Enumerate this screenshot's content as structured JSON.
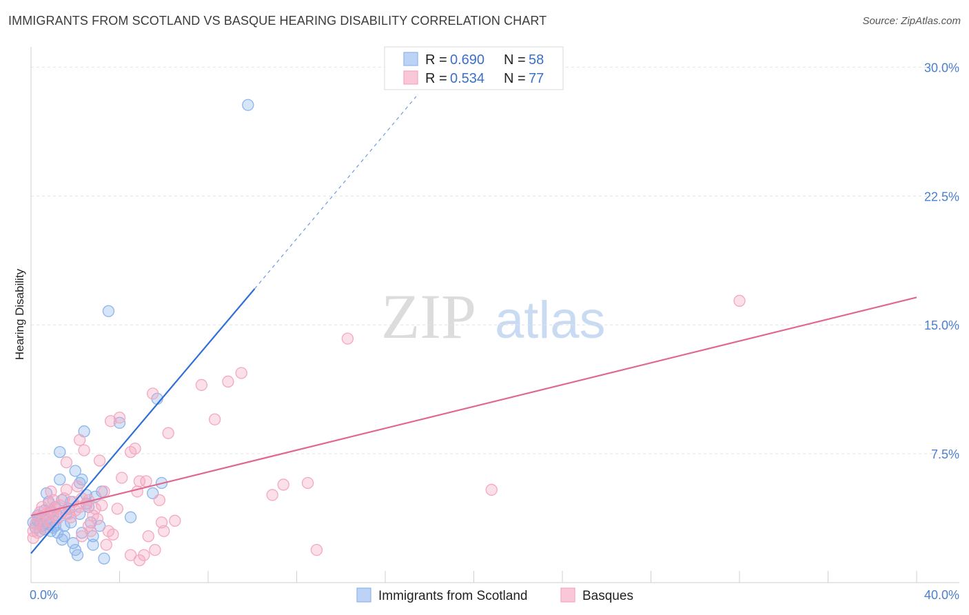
{
  "title": "IMMIGRANTS FROM SCOTLAND VS BASQUE HEARING DISABILITY CORRELATION CHART",
  "source": "Source: ZipAtlas.com",
  "watermark": {
    "zip": "ZIP",
    "atlas": "atlas"
  },
  "legend": {
    "rows": [
      {
        "r_label": "R =",
        "r_value": "0.690",
        "n_label": "N =",
        "n_value": "58"
      },
      {
        "r_label": "R =",
        "r_value": "0.534",
        "n_label": "N =",
        "n_value": "77"
      }
    ]
  },
  "bottom_legend": [
    "Immigrants from Scotland",
    "Basques"
  ],
  "chart_data": {
    "type": "scatter",
    "ylabel": "Hearing Disability",
    "xlabel": "",
    "xlim": [
      0,
      40
    ],
    "ylim": [
      0,
      30.9
    ],
    "x_tick_labels": [
      "0.0%",
      "40.0%"
    ],
    "y_ticks": [
      7.5,
      15.0,
      22.5,
      30.0
    ],
    "y_tick_labels": [
      "7.5%",
      "15.0%",
      "22.5%",
      "30.0%"
    ],
    "grid": "horizontal dashed",
    "legend_position": "top-center",
    "series": [
      {
        "name": "Immigrants from Scotland",
        "color": "#8cb4ec",
        "line_color": "#2f6fd6",
        "r": 0.69,
        "n": 58,
        "trend": {
          "x0": 0,
          "y0": 1.7,
          "x1": 10.1,
          "y1": 17.1,
          "dashed_to_x": 17.4,
          "dashed_to_y": 28.3
        },
        "points": [
          [
            0.1,
            3.5
          ],
          [
            0.2,
            3.2
          ],
          [
            0.3,
            3.6
          ],
          [
            0.3,
            3.9
          ],
          [
            0.4,
            3.4
          ],
          [
            0.5,
            3.8
          ],
          [
            0.5,
            3.3
          ],
          [
            0.6,
            4.2
          ],
          [
            0.6,
            3.1
          ],
          [
            0.7,
            3.7
          ],
          [
            0.7,
            5.2
          ],
          [
            0.8,
            3.4
          ],
          [
            0.8,
            4.7
          ],
          [
            0.9,
            3.0
          ],
          [
            0.9,
            4.1
          ],
          [
            1.0,
            3.6
          ],
          [
            1.0,
            3.2
          ],
          [
            1.1,
            4.4
          ],
          [
            1.2,
            3.9
          ],
          [
            1.2,
            2.9
          ],
          [
            1.3,
            6.0
          ],
          [
            1.3,
            7.6
          ],
          [
            1.4,
            2.5
          ],
          [
            1.4,
            4.8
          ],
          [
            1.5,
            2.7
          ],
          [
            1.5,
            3.3
          ],
          [
            1.6,
            4.0
          ],
          [
            1.7,
            4.3
          ],
          [
            1.8,
            3.5
          ],
          [
            1.8,
            4.7
          ],
          [
            1.9,
            2.3
          ],
          [
            2.0,
            6.5
          ],
          [
            2.0,
            1.9
          ],
          [
            2.1,
            1.6
          ],
          [
            2.2,
            5.8
          ],
          [
            2.2,
            4.0
          ],
          [
            2.3,
            6.0
          ],
          [
            2.3,
            2.9
          ],
          [
            2.4,
            8.8
          ],
          [
            2.5,
            4.6
          ],
          [
            2.5,
            5.1
          ],
          [
            2.6,
            4.4
          ],
          [
            2.7,
            3.5
          ],
          [
            2.8,
            2.2
          ],
          [
            2.8,
            2.7
          ],
          [
            2.9,
            5.0
          ],
          [
            3.1,
            3.3
          ],
          [
            3.2,
            5.3
          ],
          [
            3.3,
            1.4
          ],
          [
            3.5,
            15.8
          ],
          [
            4.0,
            9.3
          ],
          [
            4.5,
            3.8
          ],
          [
            5.5,
            5.2
          ],
          [
            5.7,
            10.7
          ],
          [
            5.9,
            5.8
          ],
          [
            9.8,
            27.8
          ],
          [
            1.1,
            3.3
          ],
          [
            0.4,
            3.0
          ]
        ]
      },
      {
        "name": "Basques",
        "color": "#f4a7bf",
        "line_color": "#e0688f",
        "r": 0.534,
        "n": 77,
        "trend": {
          "x0": 0,
          "y0": 3.9,
          "x1": 40,
          "y1": 16.6
        },
        "points": [
          [
            0.1,
            3.0
          ],
          [
            0.1,
            2.6
          ],
          [
            0.2,
            3.4
          ],
          [
            0.3,
            3.8
          ],
          [
            0.3,
            2.9
          ],
          [
            0.4,
            4.1
          ],
          [
            0.5,
            3.5
          ],
          [
            0.5,
            4.4
          ],
          [
            0.6,
            3.2
          ],
          [
            0.7,
            4.0
          ],
          [
            0.8,
            3.6
          ],
          [
            0.8,
            4.6
          ],
          [
            0.9,
            4.2
          ],
          [
            1.0,
            3.9
          ],
          [
            1.0,
            4.8
          ],
          [
            1.1,
            4.3
          ],
          [
            1.2,
            3.7
          ],
          [
            1.3,
            4.5
          ],
          [
            1.4,
            4.1
          ],
          [
            1.5,
            4.9
          ],
          [
            1.6,
            7.0
          ],
          [
            1.6,
            5.4
          ],
          [
            1.7,
            4.0
          ],
          [
            1.8,
            3.8
          ],
          [
            1.9,
            4.7
          ],
          [
            2.0,
            4.2
          ],
          [
            2.1,
            5.6
          ],
          [
            2.2,
            4.4
          ],
          [
            2.2,
            8.3
          ],
          [
            2.3,
            2.7
          ],
          [
            2.4,
            7.7
          ],
          [
            2.5,
            4.5
          ],
          [
            2.6,
            3.3
          ],
          [
            2.6,
            4.8
          ],
          [
            2.7,
            3.0
          ],
          [
            2.8,
            3.9
          ],
          [
            2.9,
            4.3
          ],
          [
            3.0,
            3.7
          ],
          [
            3.1,
            7.1
          ],
          [
            3.2,
            4.5
          ],
          [
            3.3,
            5.3
          ],
          [
            3.4,
            2.2
          ],
          [
            3.5,
            3.0
          ],
          [
            3.6,
            9.4
          ],
          [
            3.7,
            2.8
          ],
          [
            3.9,
            4.3
          ],
          [
            4.0,
            9.6
          ],
          [
            4.1,
            6.1
          ],
          [
            4.5,
            1.6
          ],
          [
            4.5,
            7.6
          ],
          [
            4.7,
            7.8
          ],
          [
            4.8,
            5.3
          ],
          [
            4.9,
            1.3
          ],
          [
            4.9,
            5.9
          ],
          [
            5.1,
            1.6
          ],
          [
            5.2,
            5.9
          ],
          [
            5.3,
            2.7
          ],
          [
            5.5,
            11.0
          ],
          [
            5.6,
            1.9
          ],
          [
            5.8,
            4.8
          ],
          [
            5.9,
            3.5
          ],
          [
            6.0,
            3.0
          ],
          [
            6.2,
            8.7
          ],
          [
            6.5,
            3.6
          ],
          [
            7.7,
            11.5
          ],
          [
            8.3,
            9.5
          ],
          [
            8.9,
            11.7
          ],
          [
            9.5,
            12.2
          ],
          [
            10.9,
            5.1
          ],
          [
            11.4,
            5.7
          ],
          [
            12.5,
            5.8
          ],
          [
            12.9,
            1.9
          ],
          [
            14.3,
            14.2
          ],
          [
            20.8,
            5.4
          ],
          [
            32.0,
            16.4
          ],
          [
            0.9,
            5.3
          ],
          [
            2.3,
            4.9
          ]
        ]
      }
    ]
  }
}
